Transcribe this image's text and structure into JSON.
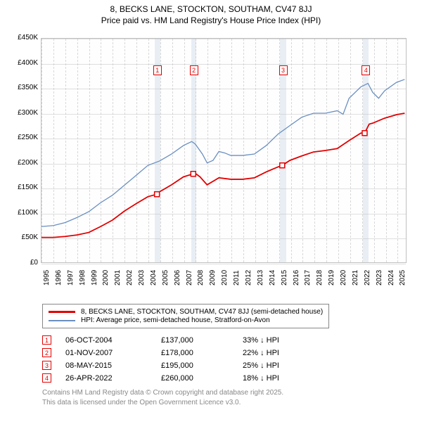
{
  "title": {
    "line1": "8, BECKS LANE, STOCKTON, SOUTHAM, CV47 8JJ",
    "line2": "Price paid vs. HM Land Registry's House Price Index (HPI)"
  },
  "chart": {
    "type": "line",
    "background_color": "#fefeff",
    "grid_color": "#c4c4c4",
    "band_color": "#e8eef4",
    "x": {
      "min": 1995,
      "max": 2025.8,
      "ticks": [
        1995,
        1996,
        1997,
        1998,
        1999,
        2000,
        2001,
        2002,
        2003,
        2004,
        2005,
        2006,
        2007,
        2008,
        2009,
        2010,
        2011,
        2012,
        2013,
        2014,
        2015,
        2016,
        2017,
        2018,
        2019,
        2020,
        2021,
        2022,
        2023,
        2024,
        2025
      ]
    },
    "y": {
      "min": 0,
      "max": 450000,
      "step": 50000,
      "prefix": "£",
      "suffix_k": "K",
      "ticks": [
        0,
        50000,
        100000,
        150000,
        200000,
        250000,
        300000,
        350000,
        400000,
        450000
      ]
    },
    "series": {
      "red": {
        "color": "#e30000",
        "points": [
          [
            1995,
            50000
          ],
          [
            1996,
            50000
          ],
          [
            1997,
            52000
          ],
          [
            1998,
            55000
          ],
          [
            1999,
            60000
          ],
          [
            2000,
            72000
          ],
          [
            2001,
            85000
          ],
          [
            2002,
            103000
          ],
          [
            2003,
            118000
          ],
          [
            2004,
            132000
          ],
          [
            2004.76,
            137000
          ],
          [
            2005,
            142000
          ],
          [
            2006,
            156000
          ],
          [
            2007,
            172000
          ],
          [
            2007.83,
            178000
          ],
          [
            2008,
            179000
          ],
          [
            2008.4,
            172000
          ],
          [
            2009,
            156000
          ],
          [
            2010,
            170000
          ],
          [
            2011,
            167000
          ],
          [
            2012,
            167000
          ],
          [
            2013,
            170000
          ],
          [
            2014,
            182000
          ],
          [
            2015,
            192000
          ],
          [
            2015.35,
            195000
          ],
          [
            2016,
            205000
          ],
          [
            2017,
            214000
          ],
          [
            2018,
            222000
          ],
          [
            2019,
            225000
          ],
          [
            2020,
            229000
          ],
          [
            2021,
            245000
          ],
          [
            2022,
            260000
          ],
          [
            2022.32,
            260000
          ],
          [
            2022.7,
            278000
          ],
          [
            2023,
            280000
          ],
          [
            2024,
            290000
          ],
          [
            2025,
            297000
          ],
          [
            2025.7,
            300000
          ]
        ]
      },
      "blue": {
        "color": "#6a8fc0",
        "points": [
          [
            1995,
            72000
          ],
          [
            1996,
            74000
          ],
          [
            1997,
            80000
          ],
          [
            1998,
            90000
          ],
          [
            1999,
            102000
          ],
          [
            2000,
            120000
          ],
          [
            2001,
            135000
          ],
          [
            2002,
            155000
          ],
          [
            2003,
            175000
          ],
          [
            2004,
            195000
          ],
          [
            2005,
            204000
          ],
          [
            2006,
            218000
          ],
          [
            2007,
            235000
          ],
          [
            2007.7,
            243000
          ],
          [
            2008,
            238000
          ],
          [
            2008.6,
            218000
          ],
          [
            2009,
            200000
          ],
          [
            2009.5,
            205000
          ],
          [
            2010,
            223000
          ],
          [
            2010.5,
            220000
          ],
          [
            2011,
            215000
          ],
          [
            2012,
            215000
          ],
          [
            2013,
            218000
          ],
          [
            2014,
            235000
          ],
          [
            2015,
            258000
          ],
          [
            2016,
            275000
          ],
          [
            2017,
            292000
          ],
          [
            2018,
            300000
          ],
          [
            2019,
            300000
          ],
          [
            2020,
            305000
          ],
          [
            2020.5,
            298000
          ],
          [
            2021,
            330000
          ],
          [
            2022,
            353000
          ],
          [
            2022.6,
            360000
          ],
          [
            2023,
            342000
          ],
          [
            2023.5,
            330000
          ],
          [
            2024,
            345000
          ],
          [
            2025,
            362000
          ],
          [
            2025.7,
            368000
          ]
        ]
      }
    },
    "markers": [
      {
        "n": 1,
        "x": 2004.76,
        "y": 137000,
        "band_from": 2004.55,
        "band_to": 2005.0
      },
      {
        "n": 2,
        "x": 2007.83,
        "y": 178000,
        "band_from": 2007.6,
        "band_to": 2008.05
      },
      {
        "n": 3,
        "x": 2015.35,
        "y": 195000,
        "band_from": 2015.1,
        "band_to": 2015.6
      },
      {
        "n": 4,
        "x": 2022.32,
        "y": 260000,
        "band_from": 2022.05,
        "band_to": 2022.55
      }
    ],
    "marker_border_color": "#e30000"
  },
  "legend": {
    "red": {
      "color": "#e30000",
      "label": "8, BECKS LANE, STOCKTON, SOUTHAM, CV47 8JJ (semi-detached house)"
    },
    "blue": {
      "color": "#6a8fc0",
      "label": "HPI: Average price, semi-detached house, Stratford-on-Avon"
    }
  },
  "sales": [
    {
      "n": "1",
      "date": "06-OCT-2004",
      "price": "£137,000",
      "pct": "33% ↓ HPI"
    },
    {
      "n": "2",
      "date": "01-NOV-2007",
      "price": "£178,000",
      "pct": "22% ↓ HPI"
    },
    {
      "n": "3",
      "date": "08-MAY-2015",
      "price": "£195,000",
      "pct": "25% ↓ HPI"
    },
    {
      "n": "4",
      "date": "26-APR-2022",
      "price": "£260,000",
      "pct": "18% ↓ HPI"
    }
  ],
  "footer": {
    "line1": "Contains HM Land Registry data © Crown copyright and database right 2025.",
    "line2": "This data is licensed under the Open Government Licence v3.0."
  }
}
